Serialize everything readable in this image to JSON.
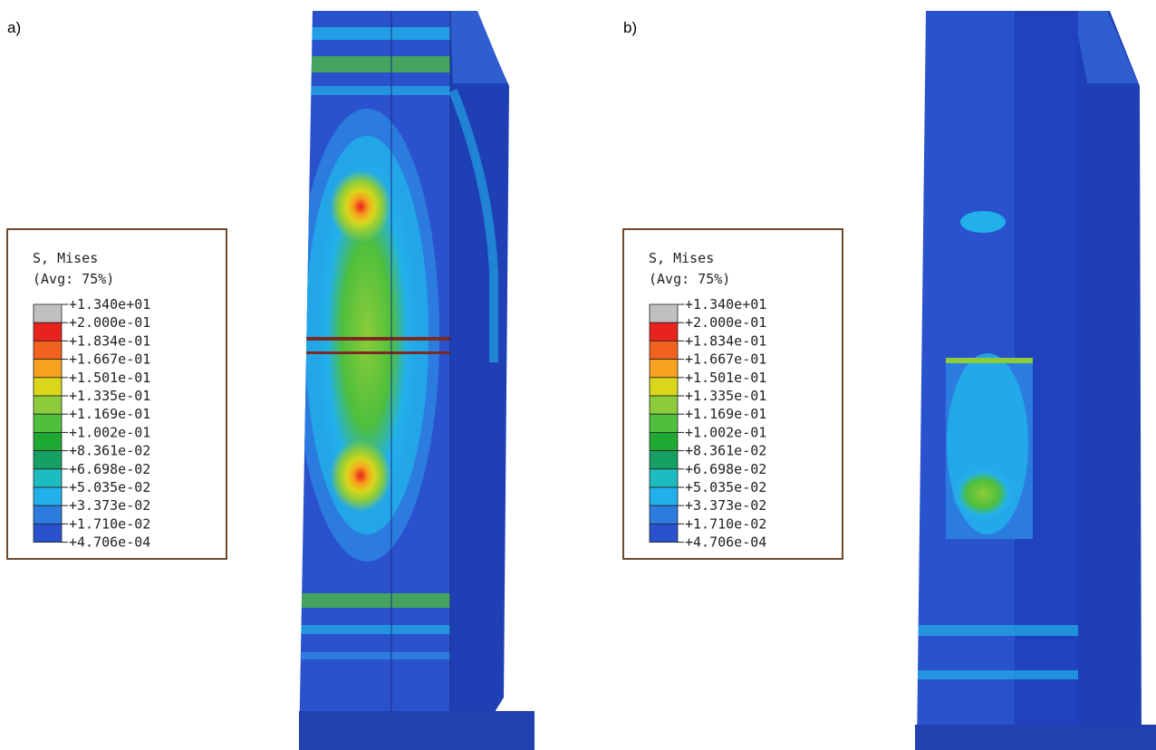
{
  "legend_colors": [
    "#c0c0c0",
    "#e8221c",
    "#f0621e",
    "#f7a21e",
    "#d9d61c",
    "#8ccc3a",
    "#4fbf3c",
    "#1fa832",
    "#17a064",
    "#1dbcc0",
    "#22b0ea",
    "#2c7ce0",
    "#2a52cc"
  ],
  "panels": [
    {
      "label": "a)",
      "legend": {
        "title": "S, Mises",
        "subtitle": "(Avg: 75%)",
        "values": [
          "+1.340e+01",
          "+2.000e-01",
          "+1.834e-01",
          "+1.667e-01",
          "+1.501e-01",
          "+1.335e-01",
          "+1.169e-01",
          "+1.002e-01",
          "+8.361e-02",
          "+6.698e-02",
          "+5.035e-02",
          "+3.373e-02",
          "+1.710e-02",
          "+4.706e-04"
        ]
      }
    },
    {
      "label": "b)",
      "legend": {
        "title": "S, Mises",
        "subtitle": "(Avg: 75%)",
        "values": [
          "+1.340e+01",
          "+2.000e-01",
          "+1.834e-01",
          "+1.667e-01",
          "+1.501e-01",
          "+1.335e-01",
          "+1.169e-01",
          "+1.002e-01",
          "+8.361e-02",
          "+6.698e-02",
          "+5.035e-02",
          "+3.373e-02",
          "+1.710e-02",
          "+4.706e-04"
        ]
      }
    }
  ]
}
